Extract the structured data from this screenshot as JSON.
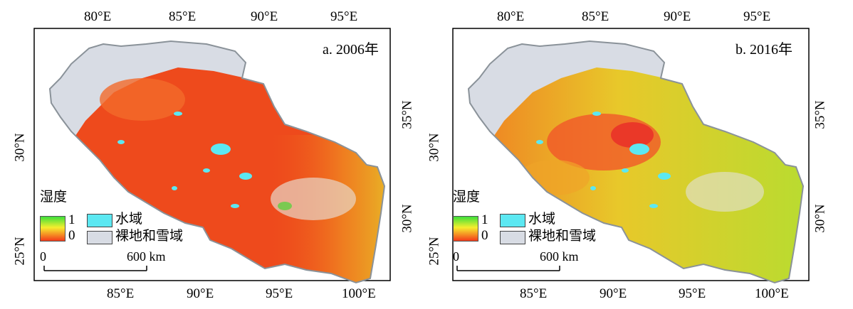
{
  "panels": [
    {
      "label": "a. 2006年",
      "top_ticks": [
        "80°E",
        "85°E",
        "90°E",
        "95°E"
      ],
      "bottom_ticks": [
        "85°E",
        "90°E",
        "95°E",
        "100°E"
      ],
      "left_ticks": [
        "30°N",
        "25°N"
      ],
      "right_ticks": [
        "35°N",
        "30°N"
      ]
    },
    {
      "label": "b. 2016年",
      "top_ticks": [
        "80°E",
        "85°E",
        "90°E",
        "95°E"
      ],
      "bottom_ticks": [
        "85°E",
        "90°E",
        "95°E",
        "100°E"
      ],
      "left_ticks": [
        "30°N",
        "25°N"
      ],
      "right_ticks": [
        "35°N",
        "30°N"
      ]
    }
  ],
  "legend": {
    "title": "湿度",
    "max_label": "1",
    "min_label": "0",
    "water_label": "水域",
    "bare_label": "裸地和雪域",
    "gradient_colors": [
      "#3ce03a",
      "#f6ee2e",
      "#f43a1a"
    ],
    "water_color": "#5ce8f2",
    "bare_color": "#d8dce4"
  },
  "scalebar": {
    "start_label": "0",
    "end_label": "600 km"
  },
  "colors": {
    "outline": "#8a9299",
    "frame": "#000000"
  }
}
